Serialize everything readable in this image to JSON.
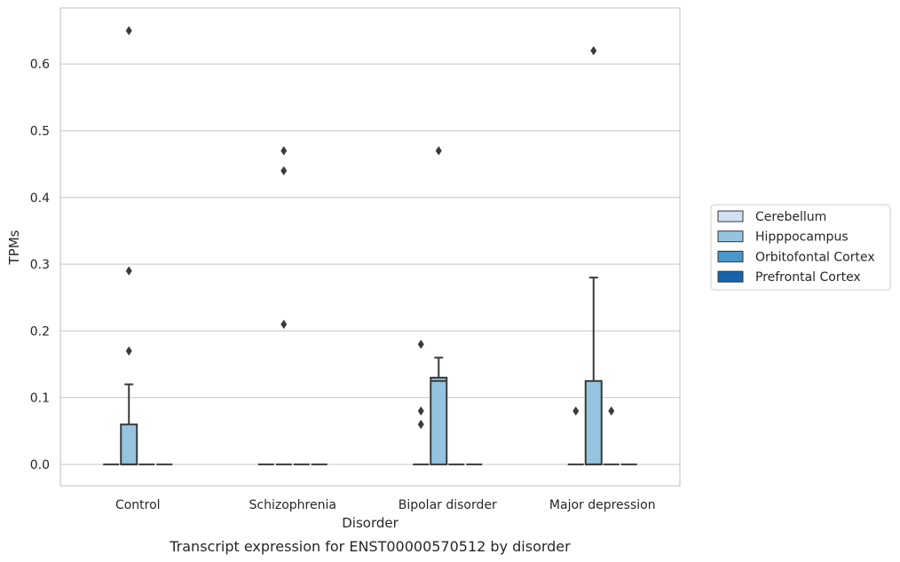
{
  "chart_data": {
    "type": "box",
    "caption": "Transcript expression for ENST00000570512 by disorder",
    "xlabel": "Disorder",
    "ylabel": "TPMs",
    "ylim": [
      -0.032,
      0.684
    ],
    "yticks": [
      0.0,
      0.1,
      0.2,
      0.3,
      0.4,
      0.5,
      0.6
    ],
    "ytick_labels": [
      "0.0",
      "0.1",
      "0.2",
      "0.3",
      "0.4",
      "0.5",
      "0.6"
    ],
    "grid": true,
    "legend_position": "right",
    "categories": [
      "Control",
      "Schizophrenia",
      "Bipolar disorder",
      "Major depression"
    ],
    "series": [
      {
        "name": "Cerebellum",
        "color": "#d0e1f2",
        "boxes": [
          {
            "whislo": 0,
            "q1": 0,
            "med": 0,
            "q3": 0,
            "whishi": 0,
            "fliers": []
          },
          {
            "whislo": 0,
            "q1": 0,
            "med": 0,
            "q3": 0,
            "whishi": 0,
            "fliers": []
          },
          {
            "whislo": 0,
            "q1": 0,
            "med": 0,
            "q3": 0,
            "whishi": 0,
            "fliers": []
          },
          {
            "whislo": 0,
            "q1": 0,
            "med": 0,
            "q3": 0,
            "whishi": 0,
            "fliers": [
              0.08
            ]
          }
        ]
      },
      {
        "name": "Hipppocampus",
        "color": "#94c4df",
        "boxes": [
          {
            "whislo": 0,
            "q1": 0,
            "med": 0,
            "q3": 0.06,
            "whishi": 0.12,
            "fliers": [
              0.17,
              0.29,
              0.65
            ]
          },
          {
            "whislo": 0,
            "q1": 0,
            "med": 0,
            "q3": 0,
            "whishi": 0,
            "fliers": [
              0.21,
              0.44,
              0.47
            ]
          },
          {
            "whislo": 0,
            "q1": 0,
            "med": 0.125,
            "q3": 0.13,
            "whishi": 0.16,
            "fliers": [
              0.47
            ]
          },
          {
            "whislo": 0,
            "q1": 0,
            "med": 0,
            "q3": 0.125,
            "whishi": 0.28,
            "fliers": [
              0.62
            ]
          }
        ]
      },
      {
        "name": "Orbitofontal Cortex",
        "color": "#4a98c9",
        "boxes": [
          {
            "whislo": 0,
            "q1": 0,
            "med": 0,
            "q3": 0,
            "whishi": 0,
            "fliers": []
          },
          {
            "whislo": 0,
            "q1": 0,
            "med": 0,
            "q3": 0,
            "whishi": 0,
            "fliers": []
          },
          {
            "whislo": 0,
            "q1": 0,
            "med": 0,
            "q3": 0,
            "whishi": 0,
            "fliers": []
          },
          {
            "whislo": 0,
            "q1": 0,
            "med": 0,
            "q3": 0,
            "whishi": 0,
            "fliers": [
              0.08
            ]
          }
        ]
      },
      {
        "name": "Prefrontal Cortex",
        "color": "#1764ab",
        "boxes": [
          {
            "whislo": 0,
            "q1": 0,
            "med": 0,
            "q3": 0,
            "whishi": 0,
            "fliers": []
          },
          {
            "whislo": 0,
            "q1": 0,
            "med": 0,
            "q3": 0,
            "whishi": 0,
            "fliers": []
          },
          {
            "whislo": 0,
            "q1": 0,
            "med": 0,
            "q3": 0,
            "whishi": 0,
            "fliers": []
          },
          {
            "whislo": 0,
            "q1": 0,
            "med": 0,
            "q3": 0,
            "whishi": 0,
            "fliers": []
          }
        ]
      }
    ],
    "bipolar_extra_fliers_cerebellum_side": [
      0.06,
      0.08,
      0.18
    ]
  }
}
